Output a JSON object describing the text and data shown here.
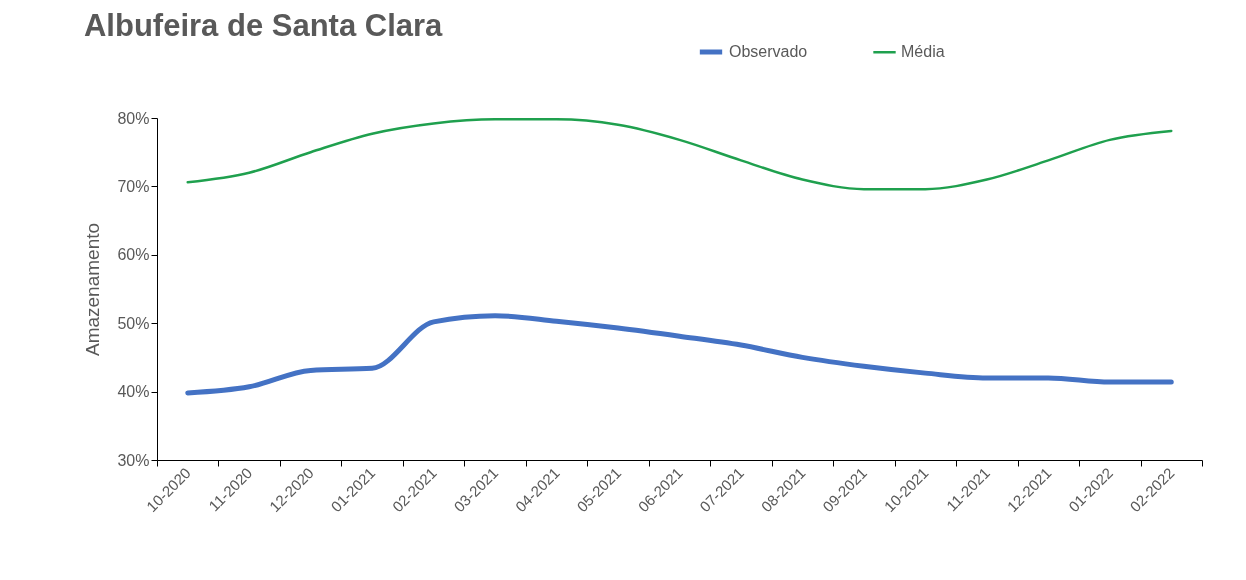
{
  "chart_data": {
    "type": "line",
    "title": "Albufeira de Santa Clara",
    "ylabel": "Amazenamento",
    "categories": [
      "10-2020",
      "11-2020",
      "12-2020",
      "01-2021",
      "02-2021",
      "03-2021",
      "04-2021",
      "05-2021",
      "06-2021",
      "07-2021",
      "08-2021",
      "09-2021",
      "10-2021",
      "11-2021",
      "12-2021",
      "01-2022",
      "02-2022"
    ],
    "series": [
      {
        "name": "Observado",
        "color": "#4472c4",
        "values": [
          39.8,
          40.7,
          43.1,
          43.4,
          50.2,
          51.1,
          50.3,
          49.3,
          48.1,
          46.8,
          45.0,
          43.7,
          42.7,
          42.0,
          42.0,
          41.4,
          41.4
        ]
      },
      {
        "name": "Média",
        "color": "#1fa04e",
        "values": [
          70.6,
          72.0,
          75.0,
          77.7,
          79.2,
          79.8,
          79.8,
          79.0,
          76.8,
          73.8,
          71.0,
          69.6,
          69.6,
          71.0,
          73.8,
          76.8,
          78.1
        ]
      }
    ],
    "ylim": [
      30,
      80
    ],
    "yticks": [
      {
        "value": 30,
        "label": "30%"
      },
      {
        "value": 40,
        "label": "40%"
      },
      {
        "value": 50,
        "label": "50%"
      },
      {
        "value": 60,
        "label": "60%"
      },
      {
        "value": 70,
        "label": "70%"
      },
      {
        "value": 80,
        "label": "80%"
      }
    ],
    "grid": false,
    "legend": "top right",
    "marker": "none",
    "line_style": "solid"
  }
}
